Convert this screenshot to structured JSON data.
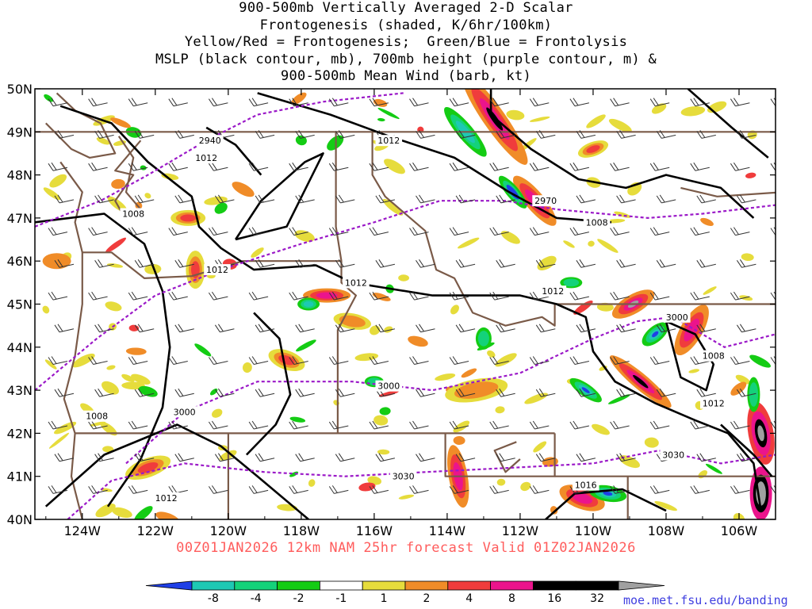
{
  "title_lines": [
    "900-500mb Vertically Averaged 2-D Scalar",
    "Frontogenesis (shaded, K/6hr/100km)",
    "Yellow/Red = Frontogenesis;  Green/Blue = Frontolysis",
    "MSLP (black contour, mb), 700mb height (purple contour, m) &",
    "900-500mb Mean Wind (barb, kt)"
  ],
  "lat_labels": [
    "50N",
    "49N",
    "48N",
    "47N",
    "46N",
    "45N",
    "44N",
    "43N",
    "42N",
    "41N",
    "40N"
  ],
  "lon_labels": [
    "124W",
    "122W",
    "120W",
    "118W",
    "116W",
    "114W",
    "112W",
    "110W",
    "108W",
    "106W"
  ],
  "mslp_labels": [
    {
      "text": "1012",
      "lon": -120.6,
      "lat": 48.4
    },
    {
      "text": "1012",
      "lon": -115.6,
      "lat": 48.8
    },
    {
      "text": "1008",
      "lon": -122.6,
      "lat": 47.1
    },
    {
      "text": "1012",
      "lon": -120.3,
      "lat": 45.8
    },
    {
      "text": "1012",
      "lon": -116.5,
      "lat": 45.5
    },
    {
      "text": "1012",
      "lon": -111.1,
      "lat": 45.3
    },
    {
      "text": "1008",
      "lon": -109.9,
      "lat": 46.9
    },
    {
      "text": "1008",
      "lon": -106.7,
      "lat": 43.8
    },
    {
      "text": "1012",
      "lon": -106.7,
      "lat": 42.7
    },
    {
      "text": "1008",
      "lon": -123.6,
      "lat": 42.4
    },
    {
      "text": "1012",
      "lon": -121.7,
      "lat": 40.5
    },
    {
      "text": "1016",
      "lon": -110.2,
      "lat": 40.8
    }
  ],
  "height_labels": [
    {
      "text": "2940",
      "lon": -120.5,
      "lat": 48.8
    },
    {
      "text": "2970",
      "lon": -111.3,
      "lat": 47.4
    },
    {
      "text": "3000",
      "lon": -107.7,
      "lat": 44.7
    },
    {
      "text": "3000",
      "lon": -115.6,
      "lat": 43.1
    },
    {
      "text": "3000",
      "lon": -121.2,
      "lat": 42.5
    },
    {
      "text": "3030",
      "lon": -107.8,
      "lat": 41.5
    },
    {
      "text": "3030",
      "lon": -115.2,
      "lat": 41.0
    }
  ],
  "legend": {
    "labels": [
      "-8",
      "-4",
      "-2",
      "-1",
      "1",
      "2",
      "4",
      "8",
      "16",
      "32"
    ],
    "colors": [
      "#1f3fe6",
      "#1ec8b4",
      "#14d27a",
      "#14cc14",
      "#ffffff",
      "#e6dc3c",
      "#f08c28",
      "#f03c3c",
      "#eb148c",
      "#000000",
      "#a0a0a0"
    ]
  },
  "valid_text": "00Z01JAN2026 12km NAM 25hr forecast Valid 01Z02JAN2026",
  "credit": "moe.met.fsu.edu/banding"
}
